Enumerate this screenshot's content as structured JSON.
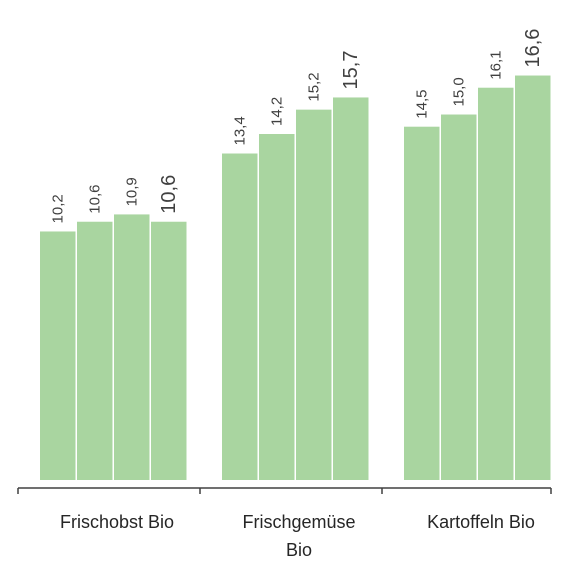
{
  "chart_data": {
    "type": "bar",
    "categories": [
      "Frischobst Bio",
      "Frischgemüse Bio",
      "Kartoffeln Bio"
    ],
    "series": [
      {
        "color": "#a9d5a0",
        "values": [
          10.2,
          13.4,
          14.5
        ],
        "value_labels": [
          "10,2",
          "13,4",
          "14,5"
        ]
      },
      {
        "color": "#a9d5a0",
        "values": [
          10.6,
          14.2,
          15.0
        ],
        "value_labels": [
          "10,6",
          "14,2",
          "15,0"
        ]
      },
      {
        "color": "#a9d5a0",
        "values": [
          10.9,
          15.2,
          16.1
        ],
        "value_labels": [
          "10,9",
          "15,2",
          "16,1"
        ]
      },
      {
        "color": "#a9d5a0",
        "values": [
          10.6,
          15.7,
          16.6
        ],
        "value_labels": [
          "10,6",
          "15,7",
          "16,6"
        ]
      }
    ],
    "ylim": [
      0,
      19.7
    ]
  }
}
